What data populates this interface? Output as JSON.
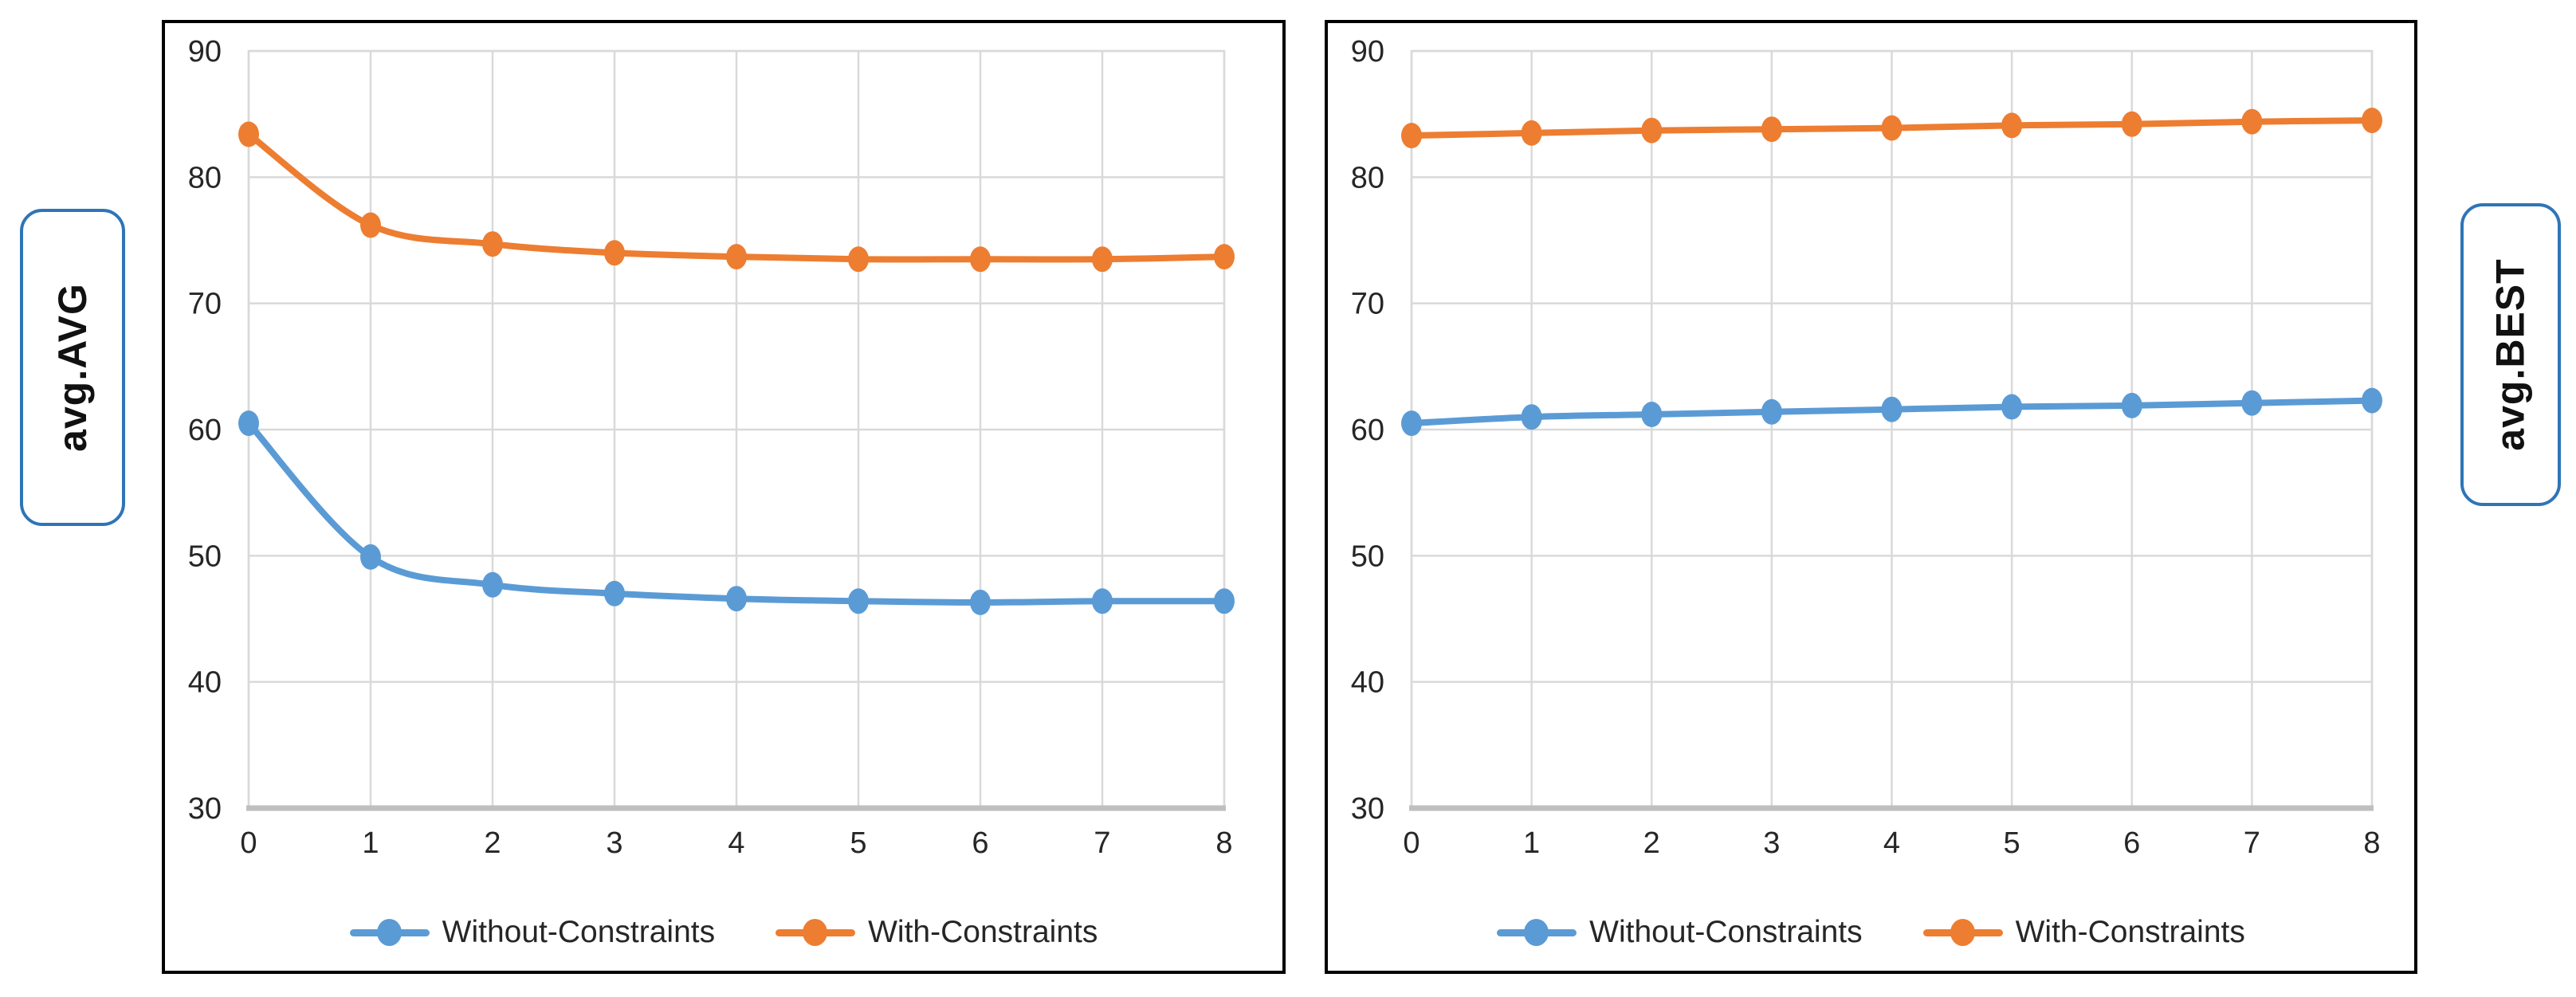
{
  "labels": {
    "left": "avg.AVG",
    "right": "avg.BEST"
  },
  "colors": {
    "blue": "#5B9BD5",
    "orange": "#ED7D31",
    "grid": "#D9D9D9",
    "axis_line": "#BFBFBF",
    "text": "#262626",
    "label_border": "#2E75B6",
    "panel_border": "#000000"
  },
  "chart_data": [
    {
      "type": "line",
      "title": "avg.AVG",
      "xlabel": "",
      "ylabel": "avg.AVG",
      "categories": [
        0,
        1,
        2,
        3,
        4,
        5,
        6,
        7,
        8
      ],
      "ylim": [
        30,
        90
      ],
      "ytick_step": 10,
      "yticks": [
        30,
        40,
        50,
        60,
        70,
        80,
        90
      ],
      "grid": true,
      "legend_position": "bottom",
      "marker": "circle",
      "smooth": true,
      "series": [
        {
          "name": "Without-Constraints",
          "color": "#5B9BD5",
          "values": [
            60.5,
            49.9,
            47.7,
            47.0,
            46.6,
            46.4,
            46.3,
            46.4,
            46.4
          ]
        },
        {
          "name": "With-Constraints",
          "color": "#ED7D31",
          "values": [
            83.4,
            76.2,
            74.7,
            74.0,
            73.7,
            73.5,
            73.5,
            73.5,
            73.7
          ]
        }
      ]
    },
    {
      "type": "line",
      "title": "avg.BEST",
      "xlabel": "",
      "ylabel": "avg.BEST",
      "categories": [
        0,
        1,
        2,
        3,
        4,
        5,
        6,
        7,
        8
      ],
      "ylim": [
        30,
        90
      ],
      "ytick_step": 10,
      "yticks": [
        30,
        40,
        50,
        60,
        70,
        80,
        90
      ],
      "grid": true,
      "legend_position": "bottom",
      "marker": "circle",
      "smooth": true,
      "series": [
        {
          "name": "Without-Constraints",
          "color": "#5B9BD5",
          "values": [
            60.5,
            61.0,
            61.2,
            61.4,
            61.6,
            61.8,
            61.9,
            62.1,
            62.3
          ]
        },
        {
          "name": "With-Constraints",
          "color": "#ED7D31",
          "values": [
            83.3,
            83.5,
            83.7,
            83.8,
            83.9,
            84.1,
            84.2,
            84.4,
            84.5
          ]
        }
      ]
    }
  ]
}
